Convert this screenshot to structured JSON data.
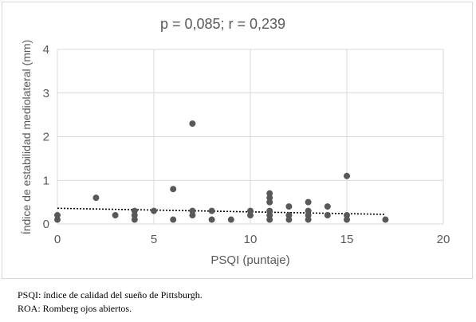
{
  "chart_data": {
    "type": "scatter",
    "title": "p = 0,085; r = 0,239",
    "xlabel": "PSQI (puntaje)",
    "ylabel": "Índice de estabilidad mediolateral (mm)",
    "xlim": [
      0,
      20
    ],
    "ylim": [
      0,
      4
    ],
    "x_ticks": [
      0,
      5,
      10,
      15,
      20
    ],
    "y_ticks": [
      0,
      1,
      2,
      3,
      4
    ],
    "grid": true,
    "trendline": {
      "style": "dotted",
      "color": "#000000",
      "x": [
        0,
        17
      ],
      "y": [
        0.36,
        0.22
      ]
    },
    "marker_color": "#595959",
    "points": [
      {
        "x": 0,
        "y": 0.2
      },
      {
        "x": 0,
        "y": 0.1
      },
      {
        "x": 2,
        "y": 0.6
      },
      {
        "x": 3,
        "y": 0.2
      },
      {
        "x": 4,
        "y": 0.3
      },
      {
        "x": 4,
        "y": 0.2
      },
      {
        "x": 4,
        "y": 0.1
      },
      {
        "x": 5,
        "y": 0.3
      },
      {
        "x": 6,
        "y": 0.8
      },
      {
        "x": 6,
        "y": 0.1
      },
      {
        "x": 7,
        "y": 2.3
      },
      {
        "x": 7,
        "y": 0.3
      },
      {
        "x": 7,
        "y": 0.2
      },
      {
        "x": 8,
        "y": 0.3
      },
      {
        "x": 8,
        "y": 0.1
      },
      {
        "x": 9,
        "y": 0.1
      },
      {
        "x": 10,
        "y": 0.3
      },
      {
        "x": 10,
        "y": 0.2
      },
      {
        "x": 11,
        "y": 0.7
      },
      {
        "x": 11,
        "y": 0.6
      },
      {
        "x": 11,
        "y": 0.5
      },
      {
        "x": 11,
        "y": 0.3
      },
      {
        "x": 11,
        "y": 0.2
      },
      {
        "x": 11,
        "y": 0.1
      },
      {
        "x": 12,
        "y": 0.4
      },
      {
        "x": 12,
        "y": 0.2
      },
      {
        "x": 12,
        "y": 0.1
      },
      {
        "x": 13,
        "y": 0.5
      },
      {
        "x": 13,
        "y": 0.3
      },
      {
        "x": 13,
        "y": 0.2
      },
      {
        "x": 13,
        "y": 0.1
      },
      {
        "x": 14,
        "y": 0.4
      },
      {
        "x": 14,
        "y": 0.2
      },
      {
        "x": 15,
        "y": 1.1
      },
      {
        "x": 15,
        "y": 0.2
      },
      {
        "x": 15,
        "y": 0.1
      },
      {
        "x": 17,
        "y": 0.1
      }
    ]
  },
  "captions": [
    "PSQI: índice de calidad del sueño de Pittsburgh.",
    "ROA: Romberg ojos abiertos."
  ]
}
